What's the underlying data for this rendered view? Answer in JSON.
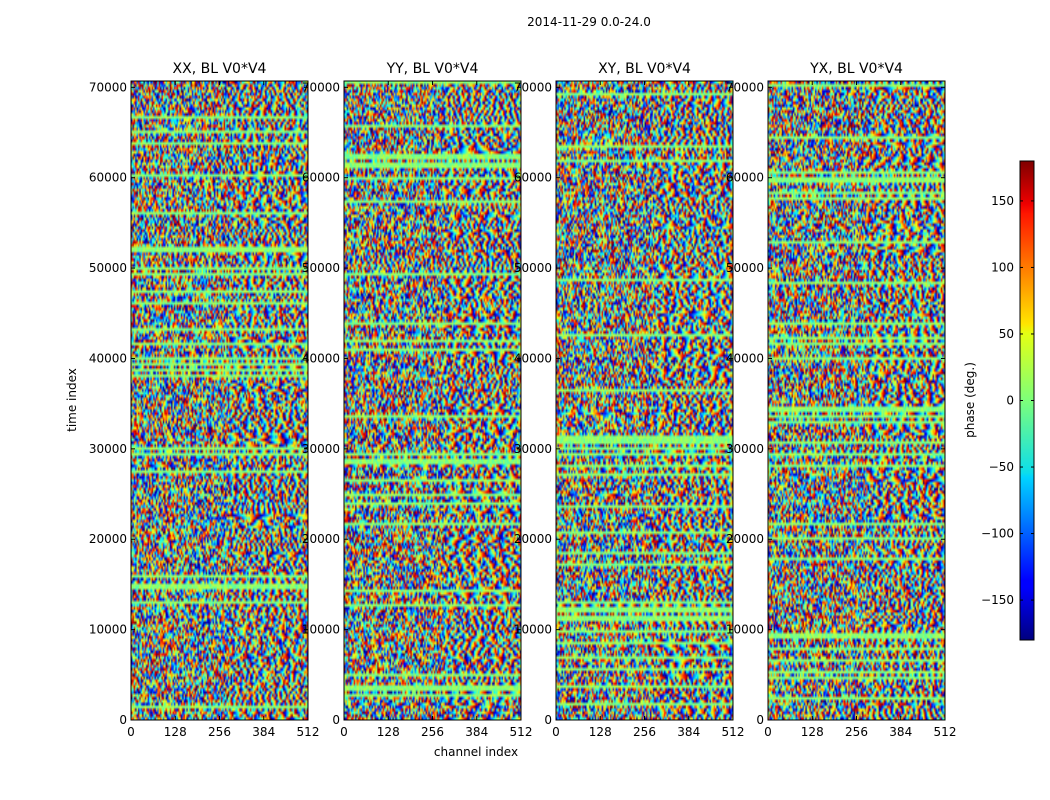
{
  "suptitle": "2014-11-29 0.0-24.0",
  "chart_data": {
    "type": "heatmap",
    "colormap": "jet",
    "xlabel": "channel index",
    "ylabel": "time index",
    "xlim": [
      0,
      512
    ],
    "ylim": [
      0,
      70700
    ],
    "xticks": [
      "0",
      "128",
      "256",
      "384",
      "512"
    ],
    "xtick_values": [
      0,
      128,
      256,
      384,
      512
    ],
    "yticks": [
      "0",
      "10000",
      "20000",
      "30000",
      "40000",
      "50000",
      "60000",
      "70000"
    ],
    "ytick_values": [
      0,
      10000,
      20000,
      30000,
      40000,
      50000,
      60000,
      70000
    ],
    "panels": [
      {
        "title": "XX, BL V0*V4"
      },
      {
        "title": "YY, BL V0*V4"
      },
      {
        "title": "XY, BL V0*V4"
      },
      {
        "title": "YX, BL V0*V4"
      }
    ],
    "colorbar": {
      "label": "phase (deg.)",
      "range": [
        -180,
        180
      ],
      "ticks": [
        "150",
        "100",
        "50",
        "0",
        "−50",
        "−100",
        "−150"
      ],
      "tick_values": [
        150,
        100,
        50,
        0,
        -50,
        -100,
        -150
      ]
    },
    "grid": false
  }
}
